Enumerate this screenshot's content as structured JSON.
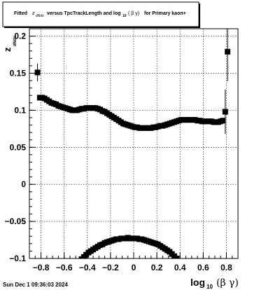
{
  "title": {
    "prefix": "Fitted",
    "z_symbol": "z",
    "z_subscript": "dNdx",
    "middle": "versus TpcTrackLength and log",
    "log_subscript": "10",
    "beta_gamma": "( β γ)",
    "suffix": "for Primary kaon+"
  },
  "timestamp": "Sun Dec  1 09:36:03 2024",
  "chart_data": {
    "type": "scatter",
    "title": "Fitted z_dNdx versus TpcTrackLength and log_10 (β γ) for Primary kaon+",
    "xlabel": {
      "main": "log",
      "sub": "10",
      "paren": "(β γ)"
    },
    "ylabel": {
      "main": "z",
      "sub": "dNdx"
    },
    "xlim": [
      -0.9,
      0.9
    ],
    "ylim": [
      -0.1,
      0.21
    ],
    "x_ticks": [
      -0.8,
      -0.6,
      -0.4,
      -0.2,
      0,
      0.2,
      0.4,
      0.6,
      0.8
    ],
    "x_tick_labels": [
      "−0.8",
      "−0.6",
      "−0.4",
      "−0.2",
      "0",
      "0.2",
      "0.4",
      "0.6",
      "0.8"
    ],
    "y_ticks": [
      -0.1,
      -0.05,
      0,
      0.05,
      0.1,
      0.15,
      0.2
    ],
    "y_tick_labels": [
      "−0.1",
      "−0.05",
      "0",
      "0.05",
      "0.1",
      "0.15",
      "0.2"
    ],
    "grid": true,
    "colors": {
      "marker": "#000000",
      "grid": "#000000",
      "frame": "#000000"
    },
    "series": [
      {
        "marker": "square",
        "points": [
          [
            -0.83,
            0.151,
            0.012
          ],
          [
            -0.81,
            0.117,
            0
          ],
          [
            -0.79,
            0.117,
            0
          ],
          [
            -0.77,
            0.116,
            0
          ],
          [
            -0.75,
            0.114,
            0
          ],
          [
            -0.73,
            0.112,
            0
          ],
          [
            -0.71,
            0.11,
            0
          ],
          [
            -0.69,
            0.109,
            0
          ],
          [
            -0.67,
            0.108,
            0
          ],
          [
            -0.65,
            0.106,
            0
          ],
          [
            -0.63,
            0.105,
            0
          ],
          [
            -0.61,
            0.104,
            0
          ],
          [
            -0.59,
            0.103,
            0
          ],
          [
            -0.57,
            0.102,
            0
          ],
          [
            -0.55,
            0.101,
            0
          ],
          [
            -0.53,
            0.1,
            0
          ],
          [
            -0.51,
            0.1,
            0
          ],
          [
            -0.49,
            0.1,
            0
          ],
          [
            -0.47,
            0.101,
            0
          ],
          [
            -0.45,
            0.102,
            0
          ],
          [
            -0.43,
            0.102,
            0
          ],
          [
            -0.41,
            0.103,
            0
          ],
          [
            -0.39,
            0.103,
            0
          ],
          [
            -0.37,
            0.103,
            0
          ],
          [
            -0.35,
            0.103,
            0
          ],
          [
            -0.33,
            0.103,
            0
          ],
          [
            -0.31,
            0.102,
            0
          ],
          [
            -0.29,
            0.101,
            0
          ],
          [
            -0.27,
            0.099,
            0
          ],
          [
            -0.25,
            0.098,
            0
          ],
          [
            -0.23,
            0.096,
            0
          ],
          [
            -0.21,
            0.094,
            0
          ],
          [
            -0.19,
            0.092,
            0
          ],
          [
            -0.17,
            0.09,
            0
          ],
          [
            -0.15,
            0.088,
            0
          ],
          [
            -0.13,
            0.086,
            0
          ],
          [
            -0.11,
            0.084,
            0
          ],
          [
            -0.09,
            0.082,
            0
          ],
          [
            -0.07,
            0.081,
            0
          ],
          [
            -0.05,
            0.08,
            0
          ],
          [
            -0.03,
            0.079,
            0
          ],
          [
            -0.01,
            0.078,
            0
          ],
          [
            0.01,
            0.077,
            0
          ],
          [
            0.03,
            0.077,
            0
          ],
          [
            0.05,
            0.076,
            0
          ],
          [
            0.07,
            0.076,
            0
          ],
          [
            0.09,
            0.076,
            0
          ],
          [
            0.11,
            0.076,
            0
          ],
          [
            0.13,
            0.076,
            0
          ],
          [
            0.15,
            0.076,
            0
          ],
          [
            0.17,
            0.077,
            0
          ],
          [
            0.19,
            0.077,
            0
          ],
          [
            0.21,
            0.078,
            0
          ],
          [
            0.23,
            0.079,
            0
          ],
          [
            0.25,
            0.079,
            0
          ],
          [
            0.27,
            0.08,
            0
          ],
          [
            0.29,
            0.081,
            0
          ],
          [
            0.31,
            0.082,
            0
          ],
          [
            0.33,
            0.083,
            0
          ],
          [
            0.35,
            0.084,
            0
          ],
          [
            0.37,
            0.085,
            0
          ],
          [
            0.39,
            0.086,
            0
          ],
          [
            0.41,
            0.087,
            0
          ],
          [
            0.43,
            0.087,
            0
          ],
          [
            0.45,
            0.087,
            0
          ],
          [
            0.47,
            0.087,
            0
          ],
          [
            0.49,
            0.087,
            0
          ],
          [
            0.51,
            0.087,
            0
          ],
          [
            0.53,
            0.087,
            0
          ],
          [
            0.55,
            0.086,
            0
          ],
          [
            0.57,
            0.086,
            0
          ],
          [
            0.59,
            0.085,
            0
          ],
          [
            0.61,
            0.085,
            0
          ],
          [
            0.63,
            0.085,
            0
          ],
          [
            0.65,
            0.085,
            0
          ],
          [
            0.67,
            0.085,
            0
          ],
          [
            0.69,
            0.084,
            0
          ],
          [
            0.71,
            0.084,
            0
          ],
          [
            0.73,
            0.084,
            0
          ],
          [
            0.75,
            0.085,
            0
          ],
          [
            0.77,
            0.086,
            0
          ],
          [
            0.79,
            0.098,
            0.03
          ],
          [
            0.81,
            0.179,
            0.04
          ]
        ]
      },
      {
        "marker": "square",
        "points": [
          [
            -0.45,
            -0.101,
            0
          ],
          [
            -0.43,
            -0.098,
            0
          ],
          [
            -0.41,
            -0.095,
            0
          ],
          [
            -0.39,
            -0.092,
            0
          ],
          [
            -0.37,
            -0.09,
            0
          ],
          [
            -0.35,
            -0.088,
            0
          ],
          [
            -0.33,
            -0.086,
            0
          ],
          [
            -0.31,
            -0.084,
            0
          ],
          [
            -0.29,
            -0.082,
            0
          ],
          [
            -0.27,
            -0.081,
            0
          ],
          [
            -0.25,
            -0.079,
            0
          ],
          [
            -0.23,
            -0.078,
            0
          ],
          [
            -0.21,
            -0.077,
            0
          ],
          [
            -0.19,
            -0.076,
            0
          ],
          [
            -0.17,
            -0.075,
            0
          ],
          [
            -0.15,
            -0.074,
            0
          ],
          [
            -0.13,
            -0.074,
            0
          ],
          [
            -0.11,
            -0.073,
            0
          ],
          [
            -0.09,
            -0.073,
            0
          ],
          [
            -0.07,
            -0.073,
            0
          ],
          [
            -0.05,
            -0.072,
            0
          ],
          [
            -0.03,
            -0.073,
            0
          ],
          [
            -0.01,
            -0.073,
            0
          ],
          [
            0.01,
            -0.073,
            0
          ],
          [
            0.03,
            -0.073,
            0
          ],
          [
            0.05,
            -0.074,
            0
          ],
          [
            0.07,
            -0.074,
            0
          ],
          [
            0.09,
            -0.075,
            0
          ],
          [
            0.11,
            -0.076,
            0
          ],
          [
            0.13,
            -0.077,
            0
          ],
          [
            0.15,
            -0.078,
            0
          ],
          [
            0.17,
            -0.079,
            0
          ],
          [
            0.19,
            -0.08,
            0
          ],
          [
            0.21,
            -0.081,
            0
          ],
          [
            0.23,
            -0.083,
            0
          ],
          [
            0.25,
            -0.085,
            0
          ],
          [
            0.27,
            -0.087,
            0
          ],
          [
            0.29,
            -0.089,
            0
          ],
          [
            0.31,
            -0.091,
            0
          ],
          [
            0.33,
            -0.094,
            0
          ],
          [
            0.35,
            -0.097,
            0
          ],
          [
            0.37,
            -0.1,
            0
          ]
        ]
      }
    ]
  }
}
